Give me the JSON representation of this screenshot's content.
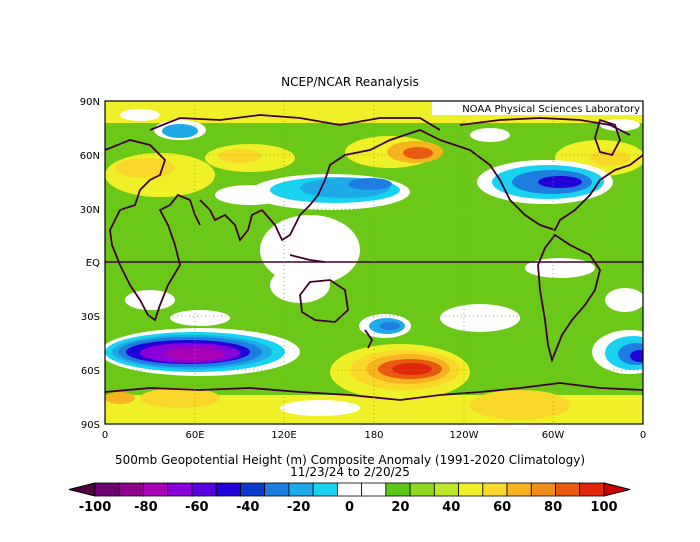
{
  "map": {
    "title": "NCEP/NCAR Reanalysis",
    "credit": "NOAA Physical Sciences Laboratory",
    "variable_title": "500mb Geopotential Height (m) Composite Anomaly (1991-2020 Climatology)",
    "date_range": "11/23/24  to 2/20/25",
    "lat_labels": [
      "90N",
      "60N",
      "30N",
      "EQ",
      "30S",
      "60S",
      "90S"
    ],
    "lon_labels": [
      "0",
      "60E",
      "120E",
      "180",
      "120W",
      "60W",
      "0"
    ]
  },
  "colorbar": {
    "labels": [
      "-100",
      "-80",
      "-60",
      "-40",
      "-20",
      "0",
      "20",
      "40",
      "60",
      "80",
      "100"
    ],
    "colors": [
      "#6e0070",
      "#8c008c",
      "#a800b4",
      "#8a00d8",
      "#5a00e0",
      "#2200d8",
      "#0a3ccc",
      "#1e7ee0",
      "#1eaae8",
      "#18d2f0",
      "#ffffff",
      "#ffffff",
      "#5cc818",
      "#8cd820",
      "#bce828",
      "#f0f028",
      "#f8d828",
      "#f8b420",
      "#f08c18",
      "#e85a10",
      "#e02808"
    ],
    "left_arrow_color": "#50003c",
    "right_arrow_color": "#d00000"
  }
}
